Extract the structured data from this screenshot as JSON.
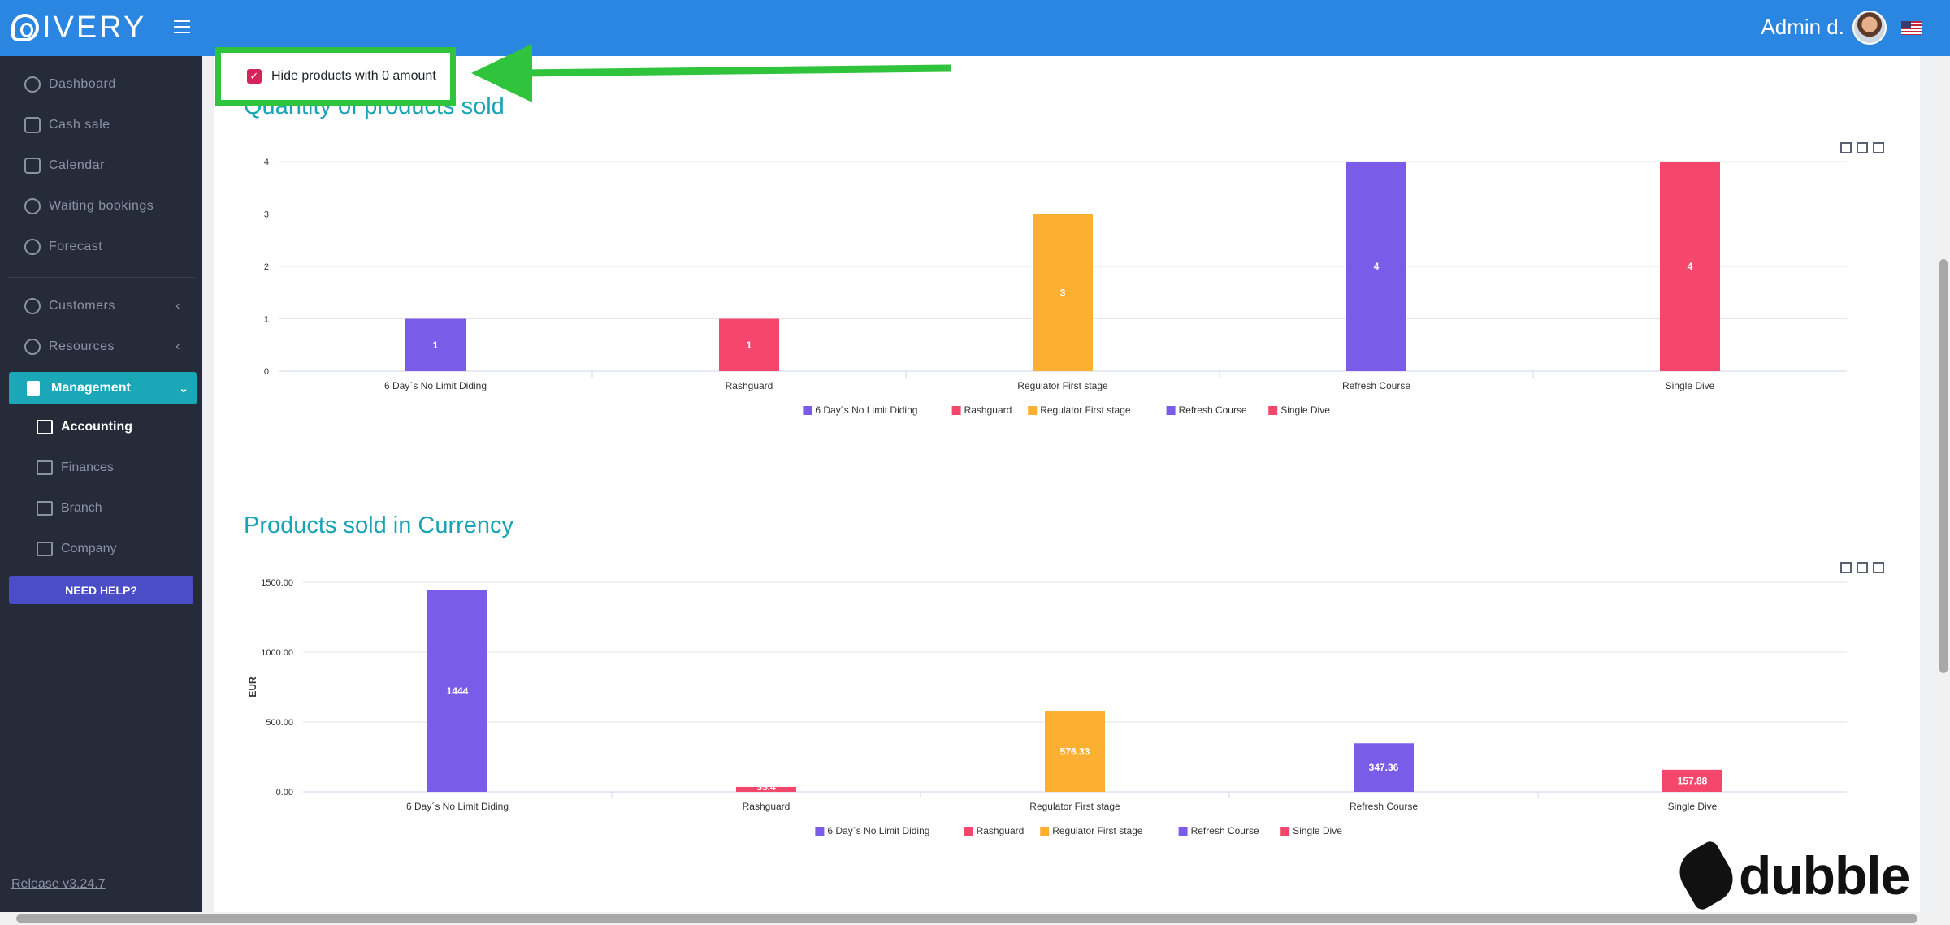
{
  "brand": {
    "name": "IVERY"
  },
  "header": {
    "user_name": "Admin d."
  },
  "sidebar": {
    "items": [
      {
        "label": "Dashboard",
        "icon": "gauge-icon"
      },
      {
        "label": "Cash sale",
        "icon": "cart-icon"
      },
      {
        "label": "Calendar",
        "icon": "calendar-icon"
      },
      {
        "label": "Waiting bookings",
        "icon": "clock-icon"
      },
      {
        "label": "Forecast",
        "icon": "map-pin-icon"
      },
      {
        "label": "Customers",
        "icon": "users-icon"
      },
      {
        "label": "Resources",
        "icon": "resource-icon"
      }
    ],
    "management": {
      "label": "Management"
    },
    "subitems": [
      {
        "label": "Accounting",
        "icon": "cart-icon"
      },
      {
        "label": "Finances",
        "icon": "book-icon"
      },
      {
        "label": "Branch",
        "icon": "branch-icon"
      },
      {
        "label": "Company",
        "icon": "bar-chart-icon"
      }
    ],
    "help_label": "NEED HELP?",
    "release": "Release v3.24.7"
  },
  "filter": {
    "hide_zero_label": "Hide products with 0 amount",
    "checked": true
  },
  "section1": {
    "title": "Quantity of products sold"
  },
  "section2": {
    "title": "Products sold in Currency"
  },
  "colors": {
    "purple": "#7b5ce8",
    "red": "#f5466b",
    "orange": "#fcb031",
    "accent": "#18a3b6",
    "highlight": "#2fc43c"
  },
  "chart_data": [
    {
      "type": "bar",
      "categories": [
        "6 Day´s No Limit Diding",
        "Rashguard",
        "Regulator First stage",
        "Refresh Course",
        "Single Dive"
      ],
      "values": [
        1,
        1,
        3,
        4,
        4
      ],
      "data_labels": [
        "1",
        "1",
        "3",
        "4",
        "4"
      ],
      "ylim": [
        0,
        4
      ],
      "yticks": [
        "0",
        "1",
        "2",
        "3",
        "4"
      ],
      "ylabel": "",
      "colors": [
        "#7b5ce8",
        "#f5466b",
        "#fcb031",
        "#7b5ce8",
        "#f5466b"
      ],
      "legend": [
        "6 Day´s No Limit Diding",
        "Rashguard",
        "Regulator First stage",
        "Refresh Course",
        "Single Dive"
      ],
      "legend_position": "bottom-center",
      "grid": true
    },
    {
      "type": "bar",
      "categories": [
        "6 Day´s No Limit Diding",
        "Rashguard",
        "Regulator First stage",
        "Refresh Course",
        "Single Dive"
      ],
      "values": [
        1444,
        35.4,
        576.33,
        347.36,
        157.88
      ],
      "data_labels": [
        "1444",
        "35.4",
        "576.33",
        "347.36",
        "157.88"
      ],
      "ylim": [
        0,
        1500
      ],
      "yticks": [
        "0.00",
        "500.00",
        "1000.00",
        "1500.00"
      ],
      "ylabel": "EUR",
      "colors": [
        "#7b5ce8",
        "#f5466b",
        "#fcb031",
        "#7b5ce8",
        "#f5466b"
      ],
      "legend": [
        "6 Day´s No Limit Diding",
        "Rashguard",
        "Regulator First stage",
        "Refresh Course",
        "Single Dive"
      ],
      "legend_position": "bottom-center",
      "grid": true
    }
  ]
}
